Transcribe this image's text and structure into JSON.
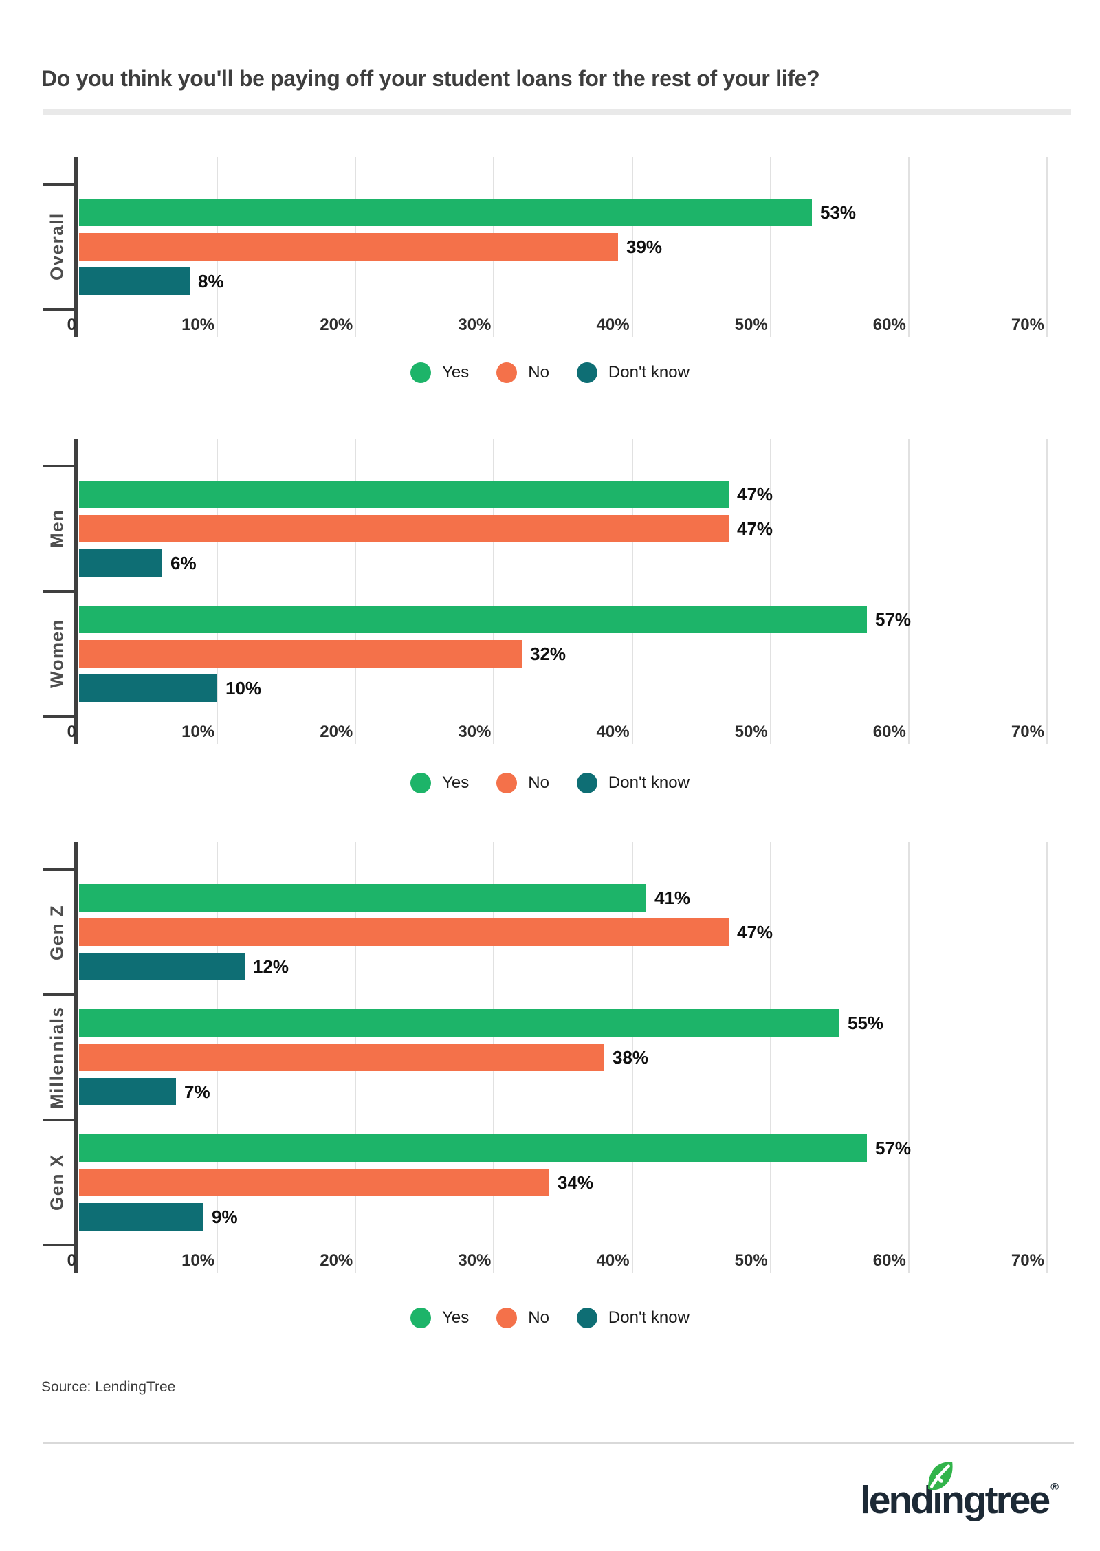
{
  "title": "Do you think you'll be paying off your student loans for the rest of your life?",
  "source": "Source: LendingTree",
  "legend": [
    "Yes",
    "No",
    "Don't know"
  ],
  "x_axis": {
    "tick_labels": [
      "0",
      "10%",
      "20%",
      "30%",
      "40%",
      "50%",
      "60%",
      "70%"
    ],
    "min": 0,
    "max": 70,
    "grid": true
  },
  "colors": {
    "yes": "#1db469",
    "no": "#f4714a",
    "dont_know": "#0e6e74",
    "axis": "#3f3f3f",
    "gridline": "#e1e1e1",
    "logo_navy": "#1c2935",
    "logo_leaf": "#32b44b"
  },
  "chart_data": [
    {
      "type": "bar",
      "orientation": "horizontal",
      "categories": [
        "Overall"
      ],
      "series": [
        {
          "name": "Yes",
          "color": "#1db469",
          "values": [
            53
          ]
        },
        {
          "name": "No",
          "color": "#f4714a",
          "values": [
            39
          ]
        },
        {
          "name": "Don't know",
          "color": "#0e6e74",
          "values": [
            8
          ]
        }
      ],
      "value_suffix": "%",
      "xlim": [
        0,
        70
      ],
      "legend_position": "bottom"
    },
    {
      "type": "bar",
      "orientation": "horizontal",
      "categories": [
        "Men",
        "Women"
      ],
      "series": [
        {
          "name": "Yes",
          "color": "#1db469",
          "values": [
            47,
            57
          ]
        },
        {
          "name": "No",
          "color": "#f4714a",
          "values": [
            47,
            32
          ]
        },
        {
          "name": "Don't know",
          "color": "#0e6e74",
          "values": [
            6,
            10
          ]
        }
      ],
      "value_suffix": "%",
      "xlim": [
        0,
        70
      ],
      "legend_position": "bottom"
    },
    {
      "type": "bar",
      "orientation": "horizontal",
      "categories": [
        "Gen Z",
        "Millennials",
        "Gen X"
      ],
      "series": [
        {
          "name": "Yes",
          "color": "#1db469",
          "values": [
            41,
            55,
            57
          ]
        },
        {
          "name": "No",
          "color": "#f4714a",
          "values": [
            47,
            38,
            34
          ]
        },
        {
          "name": "Don't know",
          "color": "#0e6e74",
          "values": [
            12,
            7,
            9
          ]
        }
      ],
      "value_suffix": "%",
      "xlim": [
        0,
        70
      ],
      "legend_position": "bottom"
    }
  ],
  "logo": {
    "wordmark": "lendingtree",
    "registered": "®"
  }
}
